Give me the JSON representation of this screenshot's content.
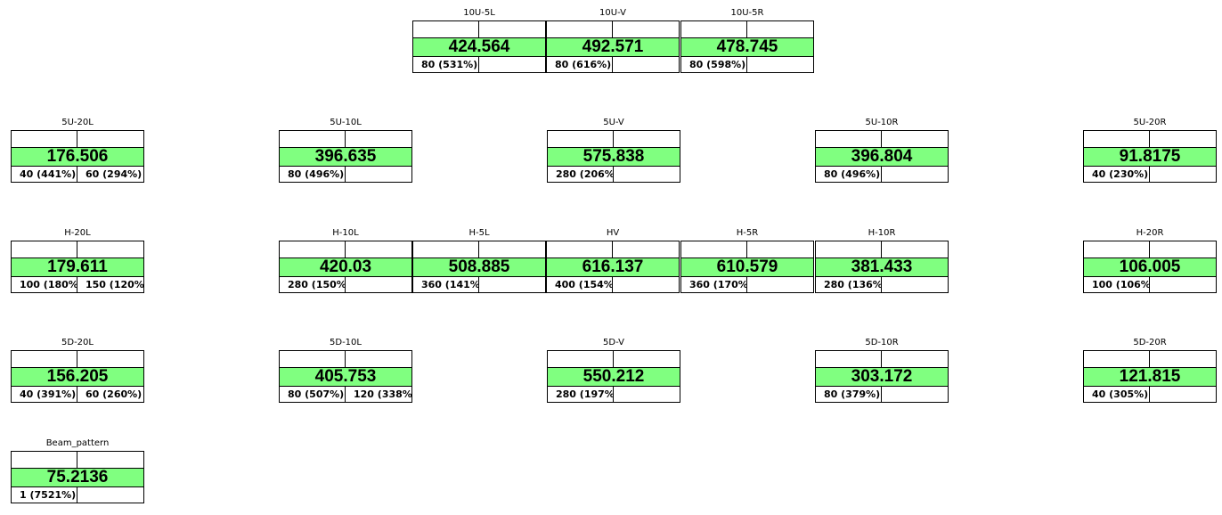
{
  "cells": [
    {
      "id": "10U-5L",
      "name": "10U-5L",
      "value": "424.564",
      "b1": "80 (531%)",
      "b2": ""
    },
    {
      "id": "10U-V",
      "name": "10U-V",
      "value": "492.571",
      "b1": "80 (616%)",
      "b2": ""
    },
    {
      "id": "10U-5R",
      "name": "10U-5R",
      "value": "478.745",
      "b1": "80 (598%)",
      "b2": ""
    },
    {
      "id": "5U-20L",
      "name": "5U-20L",
      "value": "176.506",
      "b1": "40 (441%)",
      "b2": "60 (294%)"
    },
    {
      "id": "5U-10L",
      "name": "5U-10L",
      "value": "396.635",
      "b1": "80 (496%)",
      "b2": ""
    },
    {
      "id": "5U-V",
      "name": "5U-V",
      "value": "575.838",
      "b1": "280 (206%)",
      "b2": ""
    },
    {
      "id": "5U-10R",
      "name": "5U-10R",
      "value": "396.804",
      "b1": "80 (496%)",
      "b2": ""
    },
    {
      "id": "5U-20R",
      "name": "5U-20R",
      "value": "91.8175",
      "b1": "40 (230%)",
      "b2": ""
    },
    {
      "id": "H-20L",
      "name": "H-20L",
      "value": "179.611",
      "b1": "100 (180%)",
      "b2": "150 (120%)"
    },
    {
      "id": "H-10L",
      "name": "H-10L",
      "value": "420.03",
      "b1": "280 (150%)",
      "b2": ""
    },
    {
      "id": "H-5L",
      "name": "H-5L",
      "value": "508.885",
      "b1": "360 (141%)",
      "b2": ""
    },
    {
      "id": "HV",
      "name": "HV",
      "value": "616.137",
      "b1": "400 (154%)",
      "b2": ""
    },
    {
      "id": "H-5R",
      "name": "H-5R",
      "value": "610.579",
      "b1": "360 (170%)",
      "b2": ""
    },
    {
      "id": "H-10R",
      "name": "H-10R",
      "value": "381.433",
      "b1": "280 (136%)",
      "b2": ""
    },
    {
      "id": "H-20R",
      "name": "H-20R",
      "value": "106.005",
      "b1": "100 (106%)",
      "b2": ""
    },
    {
      "id": "5D-20L",
      "name": "5D-20L",
      "value": "156.205",
      "b1": "40 (391%)",
      "b2": "60 (260%)"
    },
    {
      "id": "5D-10L",
      "name": "5D-10L",
      "value": "405.753",
      "b1": "80 (507%)",
      "b2": "120 (338%)"
    },
    {
      "id": "5D-V",
      "name": "5D-V",
      "value": "550.212",
      "b1": "280 (197%)",
      "b2": ""
    },
    {
      "id": "5D-10R",
      "name": "5D-10R",
      "value": "303.172",
      "b1": "80 (379%)",
      "b2": ""
    },
    {
      "id": "5D-20R",
      "name": "5D-20R",
      "value": "121.815",
      "b1": "40 (305%)",
      "b2": ""
    },
    {
      "id": "Beam_pattern",
      "name": "Beam_pattern",
      "value": "75.2136",
      "b1": "1 (7521%)",
      "b2": ""
    }
  ],
  "colors": {
    "value_bg": "#80ff80",
    "border": "#000000"
  }
}
